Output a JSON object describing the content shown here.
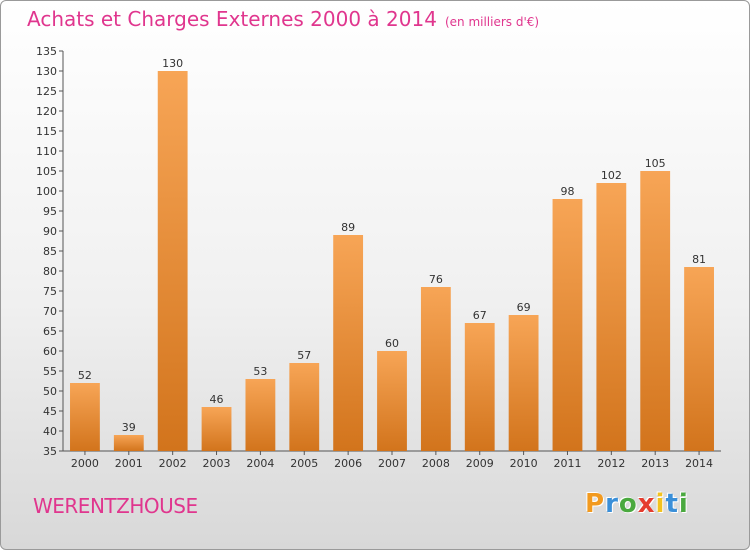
{
  "chart_data": {
    "type": "bar",
    "title": "Achats et Charges Externes 2000 à 2014",
    "subtitle": "(en milliers d'€)",
    "categories": [
      "2000",
      "2001",
      "2002",
      "2003",
      "2004",
      "2005",
      "2006",
      "2007",
      "2008",
      "2009",
      "2010",
      "2011",
      "2012",
      "2013",
      "2014"
    ],
    "values": [
      52,
      39,
      130,
      46,
      53,
      57,
      89,
      60,
      76,
      67,
      69,
      98,
      102,
      105,
      81
    ],
    "xlabel": "",
    "ylabel": "",
    "ylim": [
      35,
      135
    ],
    "ytick_step": 5,
    "grid": false,
    "bar_color_top": "#f7a556",
    "bar_color_bottom": "#d2741c"
  },
  "footer": {
    "location": "WERENTZHOUSE",
    "brand_letters": [
      "P",
      "r",
      "o",
      "x",
      "i",
      "t",
      "i"
    ],
    "brand_colors": [
      "#f29a1f",
      "#3a8fd8",
      "#4aa93f",
      "#e53c2e",
      "#f2c21f",
      "#3a8fd8",
      "#4aa93f"
    ]
  },
  "colors": {
    "accent": "#e0368e",
    "axis": "#555555"
  }
}
